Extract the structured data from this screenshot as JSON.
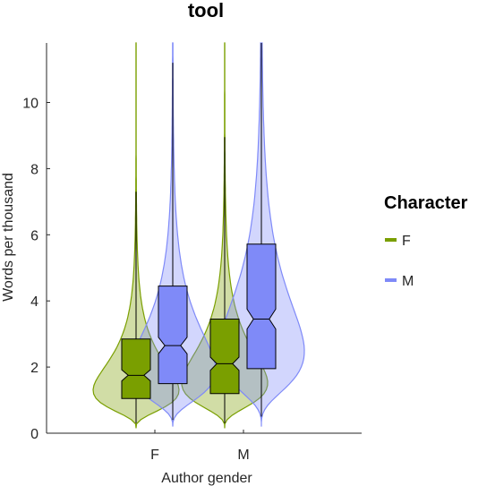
{
  "chart_data": {
    "type": "violin",
    "title": "tool",
    "xlabel": "Author gender",
    "ylabel": "Words per thousand",
    "categories": [
      "F",
      "M"
    ],
    "ylim": [
      0,
      11.8
    ],
    "yticks": [
      0,
      2,
      4,
      6,
      8,
      10
    ],
    "grid": false,
    "legend": {
      "title": "Character",
      "position": "right",
      "entries": [
        {
          "label": "F",
          "color": "#7a9f00"
        },
        {
          "label": "M",
          "color": "#7f8af8"
        }
      ]
    },
    "series": [
      {
        "name": "F",
        "color": "#7a9f00",
        "groups": [
          {
            "category": "F",
            "q1": 1.05,
            "median": 1.75,
            "q3": 2.85,
            "notch_low": 1.58,
            "notch_high": 1.92,
            "whisker_low": 0.3,
            "whisker_high": 7.3,
            "violin_min": 0.15,
            "violin_max": 11.8
          },
          {
            "category": "M",
            "q1": 1.2,
            "median": 2.1,
            "q3": 3.45,
            "notch_low": 1.9,
            "notch_high": 2.3,
            "whisker_low": 0.3,
            "whisker_high": 8.95,
            "violin_min": 0.15,
            "violin_max": 11.8
          }
        ]
      },
      {
        "name": "M",
        "color": "#7f8af8",
        "groups": [
          {
            "category": "F",
            "q1": 1.5,
            "median": 2.65,
            "q3": 4.45,
            "notch_low": 2.4,
            "notch_high": 2.9,
            "whisker_low": 0.4,
            "whisker_high": 11.2,
            "violin_min": 0.2,
            "violin_max": 11.8
          },
          {
            "category": "M",
            "q1": 1.95,
            "median": 3.45,
            "q3": 5.72,
            "notch_low": 3.15,
            "notch_high": 3.75,
            "whisker_low": 0.5,
            "whisker_high": 11.8,
            "violin_min": 0.2,
            "violin_max": 11.8
          }
        ]
      }
    ]
  }
}
